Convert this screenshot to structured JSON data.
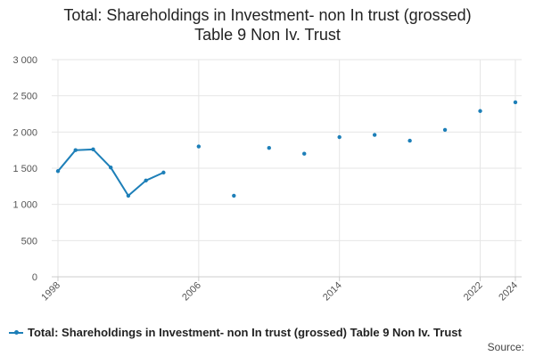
{
  "title_line1": "Total: Shareholdings in Investment- non In trust (grossed)",
  "title_line2": "Table 9 Non Iv. Trust",
  "legend_label": "Total: Shareholdings in Investment- non In trust (grossed) Table 9 Non Iv. Trust",
  "source_label": "Source:",
  "colors": {
    "series": "#1d7fb8",
    "grid": "#e6e6e6",
    "axis": "#cccccc"
  },
  "chart_data": {
    "type": "line",
    "title": "Total: Shareholdings in Investment- non In trust (grossed) Table 9 Non Iv. Trust",
    "xlabel": "",
    "ylabel": "",
    "xlim": [
      1998,
      2024
    ],
    "ylim": [
      0,
      3000
    ],
    "x_ticks": [
      1998,
      2006,
      2014,
      2022,
      2024
    ],
    "y_ticks": [
      0,
      500,
      1000,
      1500,
      2000,
      2500,
      3000
    ],
    "y_tick_labels": [
      "0",
      "500",
      "1 000",
      "1 500",
      "2 000",
      "2 500",
      "3 000"
    ],
    "grid": true,
    "legend": "bottom",
    "series": [
      {
        "name": "Total: Shareholdings in Investment- non In trust (grossed) Table 9 Non Iv. Trust",
        "x": [
          1998,
          1999,
          2000,
          2001,
          2002,
          2003,
          2004,
          2006,
          2008,
          2010,
          2012,
          2014,
          2016,
          2018,
          2020,
          2022,
          2024
        ],
        "y": [
          1460,
          1750,
          1760,
          1510,
          1120,
          1330,
          1440,
          1800,
          1120,
          1780,
          1700,
          1930,
          1960,
          1880,
          2030,
          2290,
          2410
        ]
      }
    ]
  }
}
